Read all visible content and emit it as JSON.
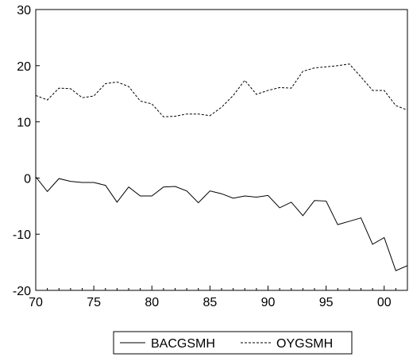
{
  "chart_data": {
    "type": "line",
    "title": "",
    "xlabel": "",
    "ylabel": "",
    "x": [
      1970,
      1971,
      1972,
      1973,
      1974,
      1975,
      1976,
      1977,
      1978,
      1979,
      1980,
      1981,
      1982,
      1983,
      1984,
      1985,
      1986,
      1987,
      1988,
      1989,
      1990,
      1991,
      1992,
      1993,
      1994,
      1995,
      1996,
      1997,
      1998,
      1999,
      2000,
      2001,
      2002
    ],
    "xlim": [
      1970,
      2002
    ],
    "ylim": [
      -20,
      30
    ],
    "x_ticks": [
      {
        "value": 1970,
        "label": "70"
      },
      {
        "value": 1975,
        "label": "75"
      },
      {
        "value": 1980,
        "label": "80"
      },
      {
        "value": 1985,
        "label": "85"
      },
      {
        "value": 1990,
        "label": "90"
      },
      {
        "value": 1995,
        "label": "95"
      },
      {
        "value": 2000,
        "label": "00"
      }
    ],
    "y_ticks": [
      {
        "value": -20,
        "label": "-20"
      },
      {
        "value": -10,
        "label": "-10"
      },
      {
        "value": 0,
        "label": "0"
      },
      {
        "value": 10,
        "label": "10"
      },
      {
        "value": 20,
        "label": "20"
      },
      {
        "value": 30,
        "label": "30"
      }
    ],
    "grid": false,
    "legend_position": "bottom",
    "series": [
      {
        "name": "BACGSMH",
        "style": "solid",
        "color": "#000000",
        "values": [
          0.2,
          -2.4,
          -0.1,
          -0.6,
          -0.8,
          -0.8,
          -1.3,
          -4.3,
          -1.6,
          -3.2,
          -3.2,
          -1.6,
          -1.5,
          -2.3,
          -4.4,
          -2.3,
          -2.8,
          -3.6,
          -3.2,
          -3.4,
          -3.1,
          -5.3,
          -4.3,
          -6.7,
          -4.0,
          -4.1,
          -8.3,
          -7.7,
          -7.1,
          -11.8,
          -10.6,
          -16.5,
          -15.6
        ]
      },
      {
        "name": "OYGSMH",
        "style": "dashed",
        "color": "#000000",
        "values": [
          14.7,
          13.9,
          16.0,
          15.9,
          14.3,
          14.6,
          16.8,
          17.1,
          16.3,
          13.7,
          13.2,
          10.9,
          11.0,
          11.4,
          11.4,
          11.1,
          12.6,
          14.7,
          17.4,
          14.9,
          15.6,
          16.1,
          16.0,
          19.0,
          19.6,
          19.8,
          20.0,
          20.3,
          18.0,
          15.6,
          15.6,
          12.9,
          12.1
        ]
      }
    ]
  }
}
